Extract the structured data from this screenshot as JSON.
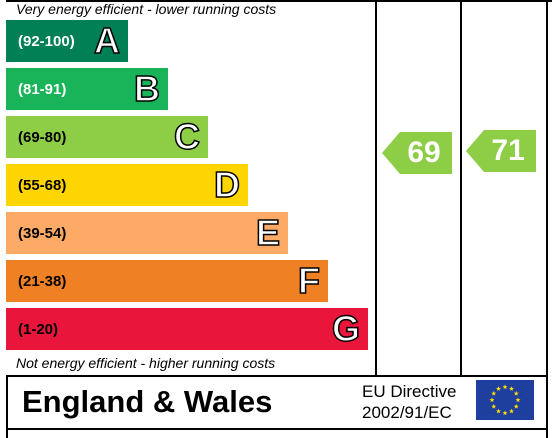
{
  "header_caption": "Very energy efficient - lower running costs",
  "footer_caption": "Not energy efficient - higher running costs",
  "region": "England & Wales",
  "directive_line1": "EU Directive",
  "directive_line2": "2002/91/EC",
  "chart_data": {
    "type": "bar",
    "categories": [
      "A",
      "B",
      "C",
      "D",
      "E",
      "F",
      "G"
    ],
    "ranges": [
      "(92-100)",
      "(81-91)",
      "(69-80)",
      "(55-68)",
      "(39-54)",
      "(21-38)",
      "(1-20)"
    ],
    "colors": [
      "#008054",
      "#19b459",
      "#8dce46",
      "#ffd500",
      "#fcaa65",
      "#ef8023",
      "#e9153b"
    ],
    "current": {
      "value": 69,
      "band": "C",
      "color": "#8dce46"
    },
    "potential": {
      "value": 71,
      "band": "C",
      "color": "#8dce46"
    }
  },
  "eu_flag": {
    "color": "#1f3f9e",
    "star_color": "#ffdd00",
    "icon": "eu-flag-icon"
  }
}
